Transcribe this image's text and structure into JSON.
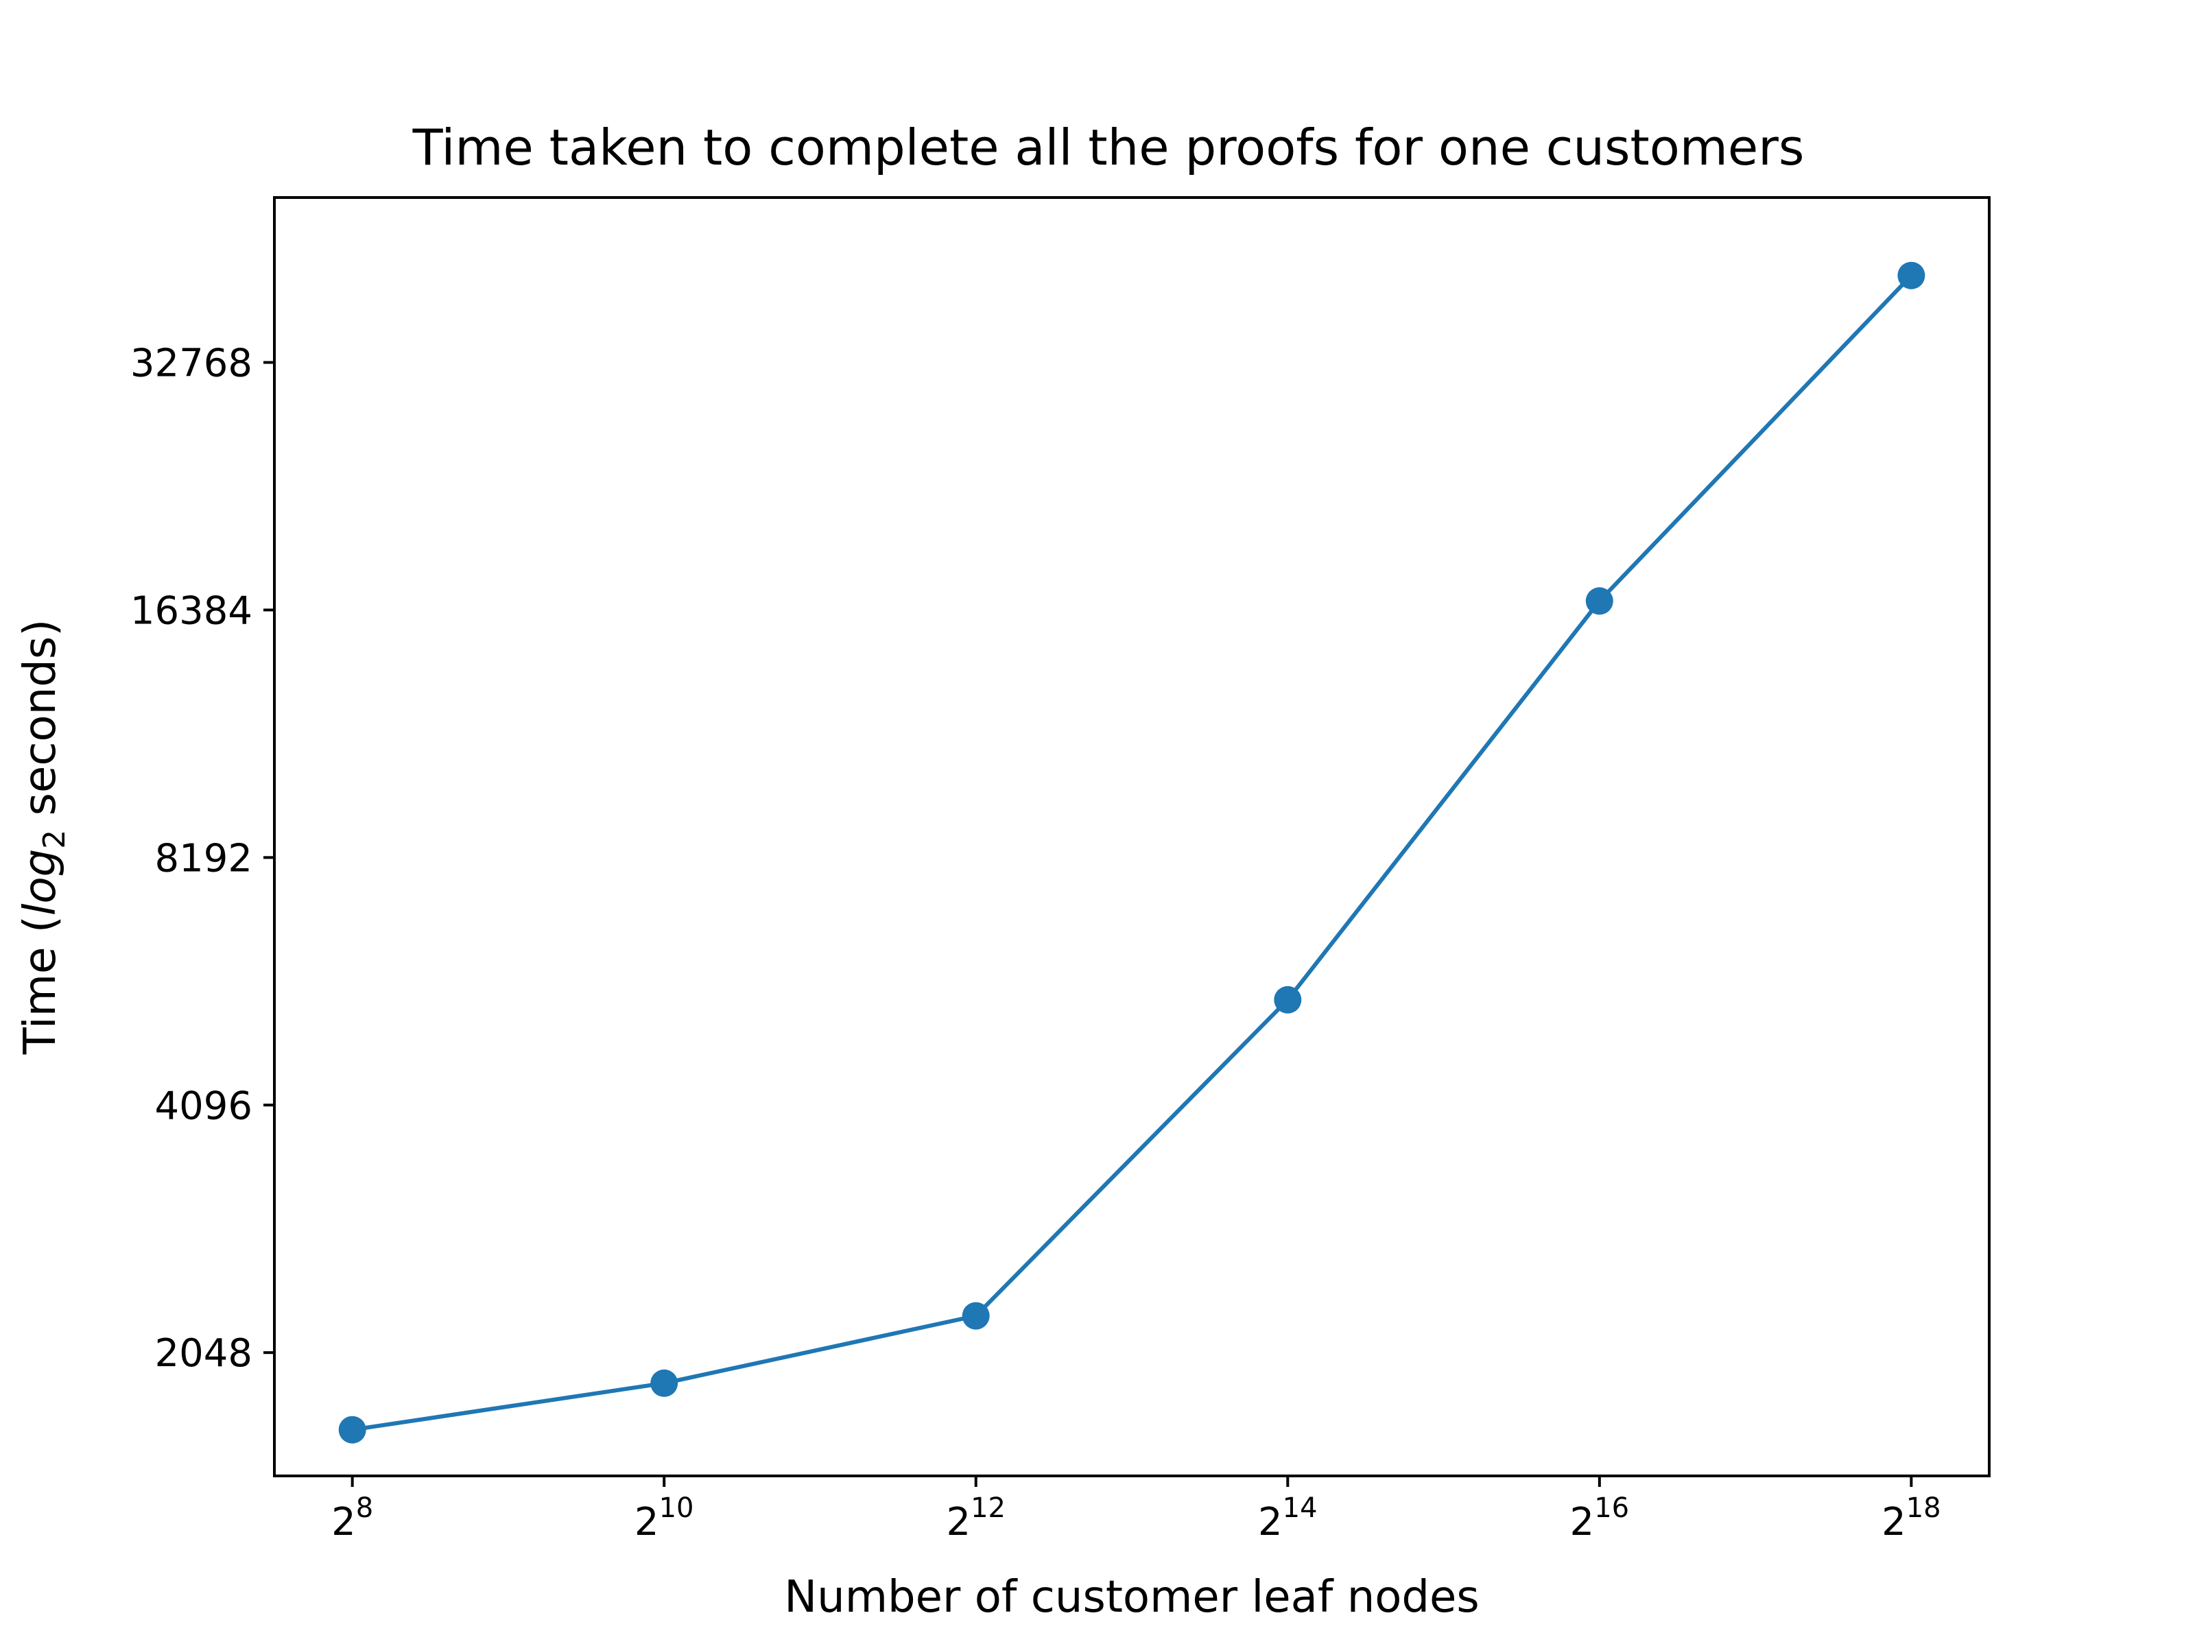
{
  "chart_data": {
    "type": "line",
    "title": "Time taken to complete all the proofs for one customers",
    "xlabel": "Number of customer leaf nodes",
    "ylabel": {
      "prefix": "Time (",
      "italic": "log",
      "subscript": "2",
      "suffix": " seconds)"
    },
    "x_scale": "log2",
    "y_scale": "log2",
    "x_ticks": [
      {
        "base": "2",
        "exp": "8",
        "value": 256
      },
      {
        "base": "2",
        "exp": "10",
        "value": 1024
      },
      {
        "base": "2",
        "exp": "12",
        "value": 4096
      },
      {
        "base": "2",
        "exp": "14",
        "value": 16384
      },
      {
        "base": "2",
        "exp": "16",
        "value": 65536
      },
      {
        "base": "2",
        "exp": "18",
        "value": 262144
      }
    ],
    "y_ticks": [
      2048,
      4096,
      8192,
      16384,
      32768
    ],
    "y_tick_labels": [
      "2048",
      "4096",
      "8192",
      "16384",
      "32768"
    ],
    "xlim": [
      181,
      370727
    ],
    "ylim": [
      1450,
      52000
    ],
    "grid": false,
    "series": [
      {
        "color": "#1f77b4",
        "marker": "circle",
        "x": [
          256,
          1024,
          4096,
          16384,
          65536,
          262144
        ],
        "y": [
          1650,
          1880,
          2270,
          5500,
          16800,
          41800
        ]
      }
    ]
  }
}
